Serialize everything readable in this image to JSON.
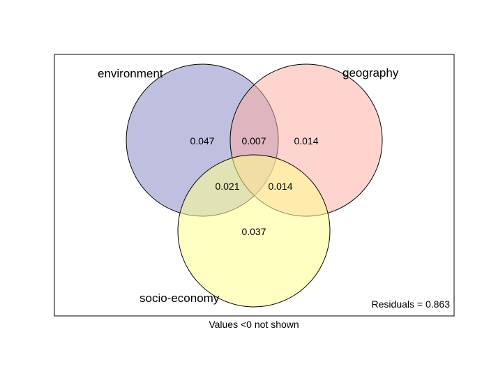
{
  "diagram": {
    "type": "venn",
    "sets": [
      {
        "id": "env",
        "label": "environment",
        "fill": "#8082C0"
      },
      {
        "id": "geo",
        "label": "geography",
        "fill": "#FFAAA0"
      },
      {
        "id": "soc",
        "label": "socio-economy",
        "fill": "#FFFF90"
      }
    ],
    "regions": [
      {
        "sets": [
          "environment"
        ],
        "value": "0.047"
      },
      {
        "sets": [
          "environment",
          "geography"
        ],
        "value": "0.007"
      },
      {
        "sets": [
          "geography"
        ],
        "value": "0.014"
      },
      {
        "sets": [
          "environment",
          "socio-economy"
        ],
        "value": "0.021"
      },
      {
        "sets": [
          "geography",
          "socio-economy"
        ],
        "value": "0.014"
      },
      {
        "sets": [
          "socio-economy"
        ],
        "value": "0.037"
      }
    ],
    "residuals_text": "Residuals = 0.863",
    "footnote": "Values <0 not shown"
  }
}
